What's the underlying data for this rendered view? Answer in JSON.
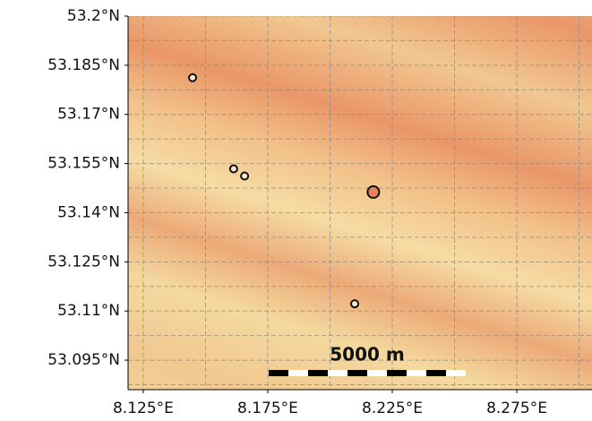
{
  "chart_data": {
    "type": "map",
    "xlim": [
      8.1189,
      8.3052
    ],
    "ylim": [
      53.086,
      53.2
    ],
    "xticks": [
      {
        "value": 8.125,
        "label": "8.125°E"
      },
      {
        "value": 8.175,
        "label": "8.175°E"
      },
      {
        "value": 8.225,
        "label": "8.225°E"
      },
      {
        "value": 8.275,
        "label": "8.275°E"
      }
    ],
    "yticks": [
      {
        "value": 53.2,
        "label": "53.2°N"
      },
      {
        "value": 53.185,
        "label": "53.185°N"
      },
      {
        "value": 53.17,
        "label": "53.17°N"
      },
      {
        "value": 53.155,
        "label": "53.155°N"
      },
      {
        "value": 53.14,
        "label": "53.14°N"
      },
      {
        "value": 53.125,
        "label": "53.125°N"
      },
      {
        "value": 53.11,
        "label": "53.11°N"
      },
      {
        "value": 53.095,
        "label": "53.095°N"
      }
    ],
    "xgrid": [
      8.125,
      8.15,
      8.175,
      8.2,
      8.225,
      8.25,
      8.275,
      8.3
    ],
    "ygrid": [
      53.2,
      53.1925,
      53.185,
      53.1775,
      53.17,
      53.1625,
      53.155,
      53.1475,
      53.14,
      53.1325,
      53.125,
      53.1175,
      53.11,
      53.1025,
      53.095,
      53.0875
    ],
    "points": {
      "lon": [
        8.1448,
        8.1613,
        8.1657,
        8.2174,
        8.2099
      ],
      "lat": [
        53.1812,
        53.1534,
        53.1512,
        53.1463,
        53.1122
      ],
      "fill": [
        "#f6ead0",
        "#f6ead0",
        "#f6ead0",
        "#e8825a",
        "#f6ead0"
      ],
      "radius": [
        4,
        4,
        4,
        6.5,
        4
      ]
    },
    "scale_bar": "5000 m"
  }
}
